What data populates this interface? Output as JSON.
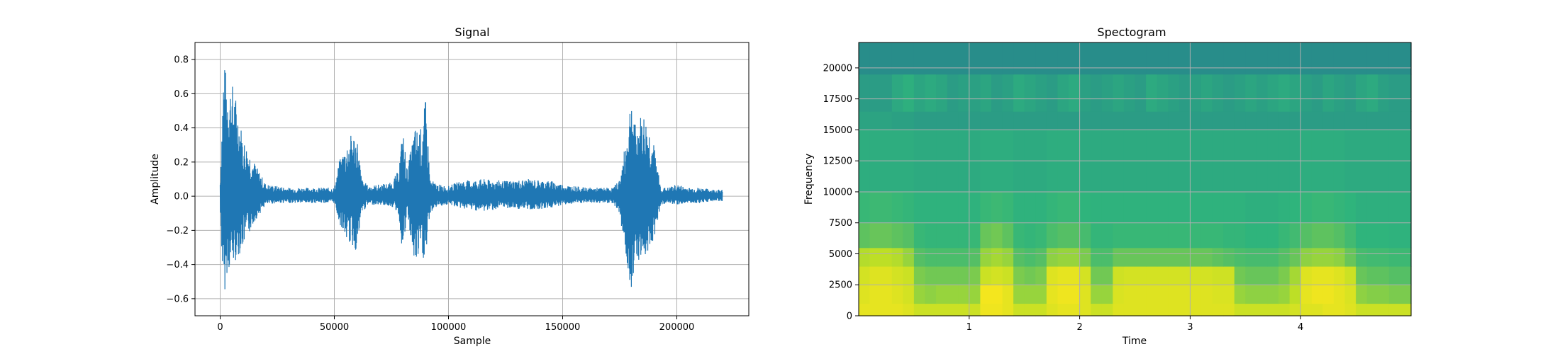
{
  "colors": {
    "signal_line": "#1f77b4",
    "grid": "#b0b0b0",
    "spec_low": "#26838e",
    "spec_mid": "#2fb47c",
    "spec_high": "#bddf26",
    "spec_peak": "#f4e61e"
  },
  "chart_data": [
    {
      "type": "line",
      "title": "Signal",
      "xlabel": "Sample",
      "ylabel": "Amplitude",
      "xlim": [
        -11025,
        231525
      ],
      "ylim": [
        -0.7,
        0.9
      ],
      "grid": true,
      "x_ticks": [
        0,
        50000,
        100000,
        150000,
        200000
      ],
      "x_tick_labels": [
        "0",
        "50000",
        "100000",
        "150000",
        "200000"
      ],
      "y_ticks": [
        -0.6,
        -0.4,
        -0.2,
        0.0,
        0.2,
        0.4,
        0.6,
        0.8
      ],
      "y_tick_labels": [
        "−0.6",
        "−0.4",
        "−0.2",
        "0.0",
        "0.2",
        "0.4",
        "0.6",
        "0.8"
      ],
      "envelope": {
        "x": [
          0,
          1500,
          3000,
          6000,
          10000,
          15000,
          20000,
          25000,
          30000,
          45000,
          50000,
          52000,
          55000,
          58000,
          60000,
          62000,
          65000,
          70000,
          75000,
          78000,
          80000,
          82000,
          85000,
          88000,
          90000,
          92000,
          95000,
          100000,
          105000,
          115000,
          125000,
          135000,
          145000,
          150000,
          160000,
          170000,
          172000,
          175000,
          178000,
          180000,
          182000,
          185000,
          188000,
          190000,
          193000,
          196000,
          200000,
          205000,
          210000,
          215000,
          220000
        ],
        "upper": [
          0.1,
          0.8,
          0.7,
          0.65,
          0.35,
          0.2,
          0.07,
          0.06,
          0.05,
          0.05,
          0.05,
          0.2,
          0.3,
          0.38,
          0.35,
          0.1,
          0.06,
          0.07,
          0.08,
          0.15,
          0.4,
          0.15,
          0.4,
          0.4,
          0.57,
          0.1,
          0.07,
          0.06,
          0.09,
          0.1,
          0.09,
          0.1,
          0.09,
          0.07,
          0.05,
          0.05,
          0.05,
          0.1,
          0.35,
          0.62,
          0.4,
          0.5,
          0.4,
          0.3,
          0.05,
          0.05,
          0.07,
          0.05,
          0.05,
          0.04,
          0.04
        ],
        "lower": [
          -0.1,
          -0.62,
          -0.45,
          -0.4,
          -0.3,
          -0.15,
          -0.05,
          -0.04,
          -0.04,
          -0.04,
          -0.04,
          -0.15,
          -0.25,
          -0.3,
          -0.33,
          -0.1,
          -0.05,
          -0.05,
          -0.06,
          -0.1,
          -0.35,
          -0.1,
          -0.42,
          -0.35,
          -0.4,
          -0.1,
          -0.06,
          -0.05,
          -0.07,
          -0.09,
          -0.07,
          -0.08,
          -0.07,
          -0.05,
          -0.04,
          -0.04,
          -0.04,
          -0.1,
          -0.4,
          -0.55,
          -0.35,
          -0.4,
          -0.3,
          -0.25,
          -0.05,
          -0.04,
          -0.05,
          -0.04,
          -0.04,
          -0.03,
          -0.03
        ]
      }
    },
    {
      "type": "heatmap",
      "title": "Spectogram",
      "xlabel": "Time",
      "ylabel": "Frequency",
      "xlim": [
        0,
        5.0
      ],
      "ylim": [
        0,
        22050
      ],
      "grid": true,
      "x_ticks": [
        1,
        2,
        3,
        4
      ],
      "x_tick_labels": [
        "1",
        "2",
        "3",
        "4"
      ],
      "y_ticks": [
        0,
        2500,
        5000,
        7500,
        10000,
        12500,
        15000,
        17500,
        20000
      ],
      "y_tick_labels": [
        "0",
        "2500",
        "5000",
        "7500",
        "10000",
        "12500",
        "15000",
        "17500",
        "20000"
      ],
      "time_bins": [
        0.05,
        0.15,
        0.25,
        0.35,
        0.45,
        0.55,
        0.65,
        0.75,
        0.85,
        0.95,
        1.05,
        1.15,
        1.25,
        1.35,
        1.45,
        1.55,
        1.65,
        1.75,
        1.85,
        1.95,
        2.05,
        2.15,
        2.25,
        2.35,
        2.45,
        2.55,
        2.65,
        2.75,
        2.85,
        2.95,
        3.05,
        3.15,
        3.25,
        3.35,
        3.45,
        3.55,
        3.65,
        3.75,
        3.85,
        3.95,
        4.05,
        4.15,
        4.25,
        4.35,
        4.45,
        4.55,
        4.65,
        4.75,
        4.85,
        4.95
      ],
      "freq_bands": [
        {
          "from": 0,
          "to": 1000
        },
        {
          "from": 1000,
          "to": 2500
        },
        {
          "from": 2500,
          "to": 4000
        },
        {
          "from": 4000,
          "to": 5500
        },
        {
          "from": 5500,
          "to": 7500
        },
        {
          "from": 7500,
          "to": 10000
        },
        {
          "from": 10000,
          "to": 15000
        },
        {
          "from": 15000,
          "to": 16500
        },
        {
          "from": 16500,
          "to": 19500
        },
        {
          "from": 19500,
          "to": 22050
        }
      ],
      "intensity_by_band_and_time": [
        [
          0.95,
          0.95,
          0.95,
          0.95,
          0.92,
          0.85,
          0.85,
          0.85,
          0.85,
          0.85,
          0.85,
          0.98,
          0.98,
          0.95,
          0.85,
          0.85,
          0.85,
          0.92,
          0.95,
          0.95,
          0.92,
          0.85,
          0.85,
          0.92,
          0.92,
          0.92,
          0.92,
          0.92,
          0.92,
          0.92,
          0.92,
          0.92,
          0.92,
          0.92,
          0.85,
          0.85,
          0.85,
          0.85,
          0.85,
          0.88,
          0.92,
          0.92,
          0.95,
          0.95,
          0.92,
          0.85,
          0.85,
          0.85,
          0.85,
          0.85
        ],
        [
          0.92,
          0.95,
          0.95,
          0.92,
          0.88,
          0.72,
          0.7,
          0.72,
          0.72,
          0.72,
          0.72,
          1.0,
          1.0,
          0.95,
          0.72,
          0.72,
          0.72,
          0.95,
          0.98,
          0.98,
          0.92,
          0.72,
          0.72,
          0.9,
          0.92,
          0.92,
          0.92,
          0.92,
          0.92,
          0.92,
          0.92,
          0.92,
          0.9,
          0.9,
          0.72,
          0.7,
          0.7,
          0.7,
          0.72,
          0.8,
          0.95,
          0.98,
          0.98,
          0.95,
          0.9,
          0.7,
          0.68,
          0.68,
          0.66,
          0.66
        ],
        [
          0.88,
          0.92,
          0.92,
          0.88,
          0.85,
          0.66,
          0.64,
          0.64,
          0.64,
          0.64,
          0.66,
          0.85,
          0.88,
          0.85,
          0.66,
          0.64,
          0.66,
          0.92,
          0.95,
          0.95,
          0.88,
          0.64,
          0.64,
          0.86,
          0.88,
          0.88,
          0.88,
          0.88,
          0.88,
          0.88,
          0.88,
          0.88,
          0.86,
          0.86,
          0.64,
          0.62,
          0.62,
          0.62,
          0.66,
          0.75,
          0.92,
          0.95,
          0.95,
          0.92,
          0.85,
          0.62,
          0.6,
          0.6,
          0.58,
          0.58
        ],
        [
          0.78,
          0.8,
          0.8,
          0.78,
          0.72,
          0.58,
          0.56,
          0.56,
          0.56,
          0.56,
          0.58,
          0.72,
          0.75,
          0.72,
          0.58,
          0.56,
          0.58,
          0.7,
          0.72,
          0.72,
          0.66,
          0.56,
          0.56,
          0.62,
          0.62,
          0.62,
          0.62,
          0.62,
          0.62,
          0.62,
          0.62,
          0.62,
          0.6,
          0.58,
          0.56,
          0.55,
          0.55,
          0.55,
          0.58,
          0.62,
          0.7,
          0.72,
          0.72,
          0.7,
          0.62,
          0.55,
          0.54,
          0.54,
          0.53,
          0.53
        ],
        [
          0.6,
          0.62,
          0.62,
          0.6,
          0.58,
          0.52,
          0.51,
          0.51,
          0.51,
          0.51,
          0.52,
          0.62,
          0.64,
          0.6,
          0.52,
          0.51,
          0.52,
          0.56,
          0.58,
          0.58,
          0.55,
          0.51,
          0.51,
          0.52,
          0.52,
          0.52,
          0.52,
          0.52,
          0.52,
          0.52,
          0.52,
          0.52,
          0.52,
          0.51,
          0.51,
          0.5,
          0.5,
          0.5,
          0.52,
          0.54,
          0.58,
          0.6,
          0.6,
          0.58,
          0.54,
          0.5,
          0.5,
          0.5,
          0.49,
          0.49
        ],
        [
          0.52,
          0.53,
          0.53,
          0.52,
          0.51,
          0.49,
          0.49,
          0.49,
          0.49,
          0.49,
          0.49,
          0.52,
          0.53,
          0.52,
          0.49,
          0.49,
          0.49,
          0.51,
          0.52,
          0.52,
          0.5,
          0.49,
          0.49,
          0.49,
          0.49,
          0.49,
          0.49,
          0.49,
          0.49,
          0.49,
          0.49,
          0.49,
          0.49,
          0.49,
          0.49,
          0.48,
          0.48,
          0.48,
          0.49,
          0.5,
          0.51,
          0.52,
          0.52,
          0.51,
          0.5,
          0.48,
          0.48,
          0.48,
          0.48,
          0.48
        ],
        [
          0.47,
          0.47,
          0.47,
          0.47,
          0.47,
          0.46,
          0.46,
          0.46,
          0.46,
          0.46,
          0.46,
          0.47,
          0.47,
          0.47,
          0.46,
          0.46,
          0.46,
          0.47,
          0.47,
          0.47,
          0.46,
          0.46,
          0.46,
          0.46,
          0.46,
          0.46,
          0.46,
          0.46,
          0.46,
          0.46,
          0.46,
          0.46,
          0.46,
          0.46,
          0.46,
          0.46,
          0.46,
          0.46,
          0.46,
          0.46,
          0.47,
          0.47,
          0.47,
          0.47,
          0.46,
          0.46,
          0.46,
          0.46,
          0.46,
          0.46
        ],
        [
          0.43,
          0.43,
          0.43,
          0.42,
          0.42,
          0.4,
          0.4,
          0.4,
          0.4,
          0.4,
          0.4,
          0.4,
          0.4,
          0.4,
          0.4,
          0.4,
          0.4,
          0.4,
          0.4,
          0.4,
          0.4,
          0.4,
          0.4,
          0.4,
          0.4,
          0.4,
          0.4,
          0.4,
          0.4,
          0.4,
          0.4,
          0.4,
          0.4,
          0.4,
          0.4,
          0.4,
          0.4,
          0.4,
          0.4,
          0.4,
          0.4,
          0.4,
          0.4,
          0.4,
          0.4,
          0.4,
          0.4,
          0.4,
          0.4,
          0.4
        ],
        [
          0.4,
          0.4,
          0.4,
          0.45,
          0.48,
          0.44,
          0.46,
          0.44,
          0.4,
          0.42,
          0.42,
          0.44,
          0.4,
          0.42,
          0.46,
          0.44,
          0.42,
          0.4,
          0.44,
          0.46,
          0.42,
          0.4,
          0.42,
          0.44,
          0.42,
          0.4,
          0.46,
          0.44,
          0.42,
          0.4,
          0.42,
          0.44,
          0.42,
          0.4,
          0.42,
          0.44,
          0.42,
          0.44,
          0.46,
          0.44,
          0.42,
          0.4,
          0.44,
          0.42,
          0.4,
          0.44,
          0.46,
          0.42,
          0.4,
          0.4
        ],
        [
          0.34,
          0.34,
          0.34,
          0.34,
          0.34,
          0.34,
          0.34,
          0.34,
          0.34,
          0.34,
          0.34,
          0.34,
          0.34,
          0.34,
          0.34,
          0.34,
          0.34,
          0.34,
          0.34,
          0.34,
          0.34,
          0.34,
          0.34,
          0.34,
          0.34,
          0.34,
          0.34,
          0.34,
          0.34,
          0.34,
          0.34,
          0.34,
          0.34,
          0.34,
          0.34,
          0.34,
          0.34,
          0.34,
          0.34,
          0.34,
          0.34,
          0.34,
          0.34,
          0.34,
          0.34,
          0.34,
          0.34,
          0.34,
          0.34,
          0.34
        ]
      ]
    }
  ]
}
